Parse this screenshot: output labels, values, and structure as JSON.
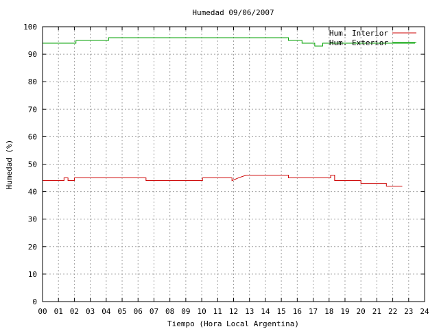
{
  "chart_data": {
    "type": "line",
    "title": "Humedad 09/06/2007",
    "xlabel": "Tiempo (Hora Local Argentina)",
    "ylabel": "Humedad (%)",
    "xlim": [
      0,
      24
    ],
    "ylim": [
      0,
      100
    ],
    "x_ticks": [
      0,
      1,
      2,
      3,
      4,
      5,
      6,
      7,
      8,
      9,
      10,
      11,
      12,
      13,
      14,
      15,
      16,
      17,
      18,
      19,
      20,
      21,
      22,
      23,
      24
    ],
    "x_tick_labels": [
      "00",
      "01",
      "02",
      "03",
      "04",
      "05",
      "06",
      "07",
      "08",
      "09",
      "10",
      "11",
      "12",
      "13",
      "14",
      "15",
      "16",
      "17",
      "18",
      "19",
      "20",
      "21",
      "22",
      "23",
      "24"
    ],
    "y_ticks": [
      0,
      10,
      20,
      30,
      40,
      50,
      60,
      70,
      80,
      90,
      100
    ],
    "y_tick_labels": [
      "0",
      "10",
      "20",
      "30",
      "40",
      "50",
      "60",
      "70",
      "80",
      "90",
      "100"
    ],
    "grid": true,
    "legend_position": "top-right",
    "series": [
      {
        "name": "Hum. Interior",
        "color": "#cc0000",
        "x": [
          0.0,
          0.1,
          0.1,
          0.45,
          0.45,
          1.35,
          1.35,
          1.6,
          1.6,
          2.0,
          2.0,
          2.55,
          2.55,
          5.2,
          5.2,
          6.5,
          6.5,
          10.05,
          10.05,
          11.9,
          11.9,
          12.3,
          12.8,
          13.1,
          13.1,
          15.45,
          15.45,
          18.1,
          18.1,
          18.35,
          18.35,
          19.0,
          19.0,
          20.0,
          20.0,
          21.6,
          21.6,
          22.6,
          22.6
        ],
        "y": [
          44,
          44,
          44,
          44,
          44,
          44,
          45,
          45,
          44,
          44,
          45,
          45,
          45,
          45,
          45,
          45,
          44,
          44,
          45,
          45,
          44,
          45,
          46,
          46,
          46,
          46,
          45,
          45,
          46,
          46,
          44,
          44,
          44,
          44,
          43,
          43,
          42,
          42,
          42
        ]
      },
      {
        "name": "Hum. Exterior",
        "color": "#00a000",
        "x": [
          0.0,
          1.2,
          1.2,
          2.1,
          2.1,
          4.15,
          4.15,
          15.45,
          15.45,
          16.3,
          16.3,
          17.1,
          17.1,
          17.6,
          17.6,
          18.1,
          18.1,
          23.4
        ],
        "y": [
          94,
          94,
          94,
          94,
          95,
          95,
          96,
          96,
          95,
          95,
          94,
          94,
          93,
          93,
          94,
          94,
          94,
          94
        ]
      }
    ]
  }
}
